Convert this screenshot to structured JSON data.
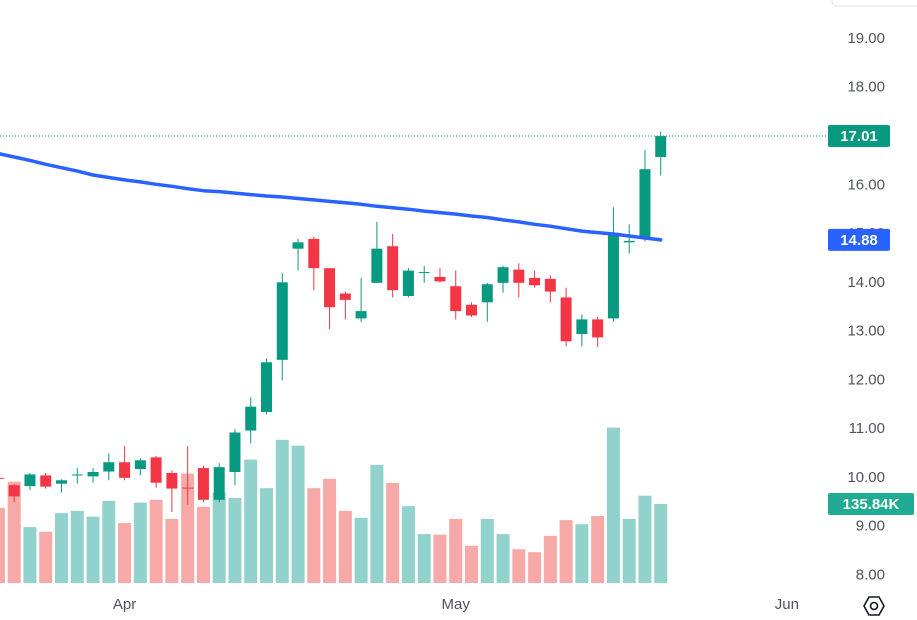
{
  "chart_data": {
    "type": "candlestick",
    "categories": [
      null,
      null,
      null,
      null,
      null,
      null,
      null,
      null,
      null,
      null,
      null,
      null,
      null,
      null,
      null,
      null,
      null,
      null,
      null,
      null,
      null,
      null,
      null,
      null,
      null,
      null,
      null,
      null,
      null,
      null,
      null,
      null,
      null,
      null,
      null,
      null,
      null,
      null,
      null,
      null,
      null,
      null,
      null
    ],
    "open": [
      10.0,
      9.85,
      9.83,
      10.05,
      9.88,
      10.05,
      10.03,
      10.13,
      10.32,
      10.18,
      10.42,
      10.1,
      9.8,
      10.2,
      9.55,
      10.12,
      10.97,
      11.35,
      12.42,
      14.7,
      14.9,
      14.3,
      13.78,
      13.27,
      14.0,
      14.75,
      13.73,
      14.2,
      14.12,
      13.93,
      13.55,
      13.6,
      14.0,
      14.27,
      14.1,
      14.08,
      13.7,
      12.95,
      13.25,
      13.27,
      14.83,
      14.93,
      16.58
    ],
    "high": [
      10.05,
      9.87,
      10.1,
      10.1,
      9.97,
      10.2,
      10.2,
      10.5,
      10.65,
      10.4,
      10.45,
      10.15,
      10.65,
      10.25,
      10.3,
      11.0,
      11.65,
      12.45,
      14.2,
      14.9,
      14.95,
      14.3,
      13.82,
      14.1,
      15.25,
      15.0,
      14.3,
      14.35,
      14.3,
      14.25,
      13.6,
      14.0,
      14.35,
      14.4,
      14.25,
      14.15,
      13.9,
      13.35,
      13.3,
      15.55,
      15.2,
      16.72,
      17.1
    ],
    "low": [
      9.9,
      9.5,
      9.75,
      9.78,
      9.7,
      9.88,
      9.9,
      9.95,
      9.95,
      10.05,
      9.8,
      9.3,
      9.45,
      9.5,
      9.5,
      9.85,
      10.7,
      11.3,
      12.0,
      14.25,
      13.85,
      13.05,
      13.25,
      13.2,
      14.0,
      13.7,
      13.7,
      14.0,
      14.0,
      13.25,
      13.3,
      13.2,
      13.8,
      13.7,
      13.9,
      13.6,
      12.7,
      12.7,
      12.68,
      13.2,
      14.6,
      14.85,
      16.2
    ],
    "close": [
      9.98,
      9.62,
      10.07,
      9.82,
      9.95,
      10.07,
      10.12,
      10.32,
      10.0,
      10.36,
      9.9,
      9.78,
      9.78,
      9.55,
      10.22,
      10.93,
      11.46,
      12.37,
      14.01,
      14.83,
      14.3,
      13.5,
      13.65,
      13.42,
      14.7,
      13.85,
      14.25,
      14.22,
      14.03,
      13.42,
      13.33,
      13.97,
      14.32,
      14.0,
      13.95,
      13.82,
      12.8,
      13.25,
      12.88,
      15.0,
      14.86,
      16.33,
      17.01
    ],
    "volume": [
      129000,
      174000,
      96000,
      88000,
      120000,
      124000,
      114000,
      141000,
      103000,
      138000,
      143000,
      110000,
      188000,
      131000,
      155000,
      146000,
      212000,
      163000,
      246000,
      236000,
      163000,
      179000,
      124000,
      112000,
      203000,
      172000,
      132000,
      84000,
      83000,
      110000,
      64000,
      110000,
      84000,
      58000,
      53000,
      81000,
      108000,
      101000,
      115000,
      267000,
      110000,
      150000,
      135840
    ],
    "ma": [
      16.65,
      16.58,
      16.51,
      16.43,
      16.36,
      16.29,
      16.21,
      16.16,
      16.11,
      16.07,
      16.02,
      15.98,
      15.93,
      15.89,
      15.87,
      15.84,
      15.81,
      15.78,
      15.76,
      15.73,
      15.7,
      15.67,
      15.64,
      15.61,
      15.57,
      15.54,
      15.51,
      15.47,
      15.44,
      15.41,
      15.37,
      15.34,
      15.29,
      15.25,
      15.2,
      15.16,
      15.11,
      15.06,
      15.03,
      15.0,
      14.96,
      14.92,
      14.88
    ],
    "colors": {
      "up": "#089981",
      "down": "#f23645",
      "up_volume": "#92d2cc",
      "down_volume": "#f7a9a7",
      "ma": "#2962ff"
    },
    "xlim": [
      0.1,
      52.1
    ],
    "xticks": [
      {
        "value": 8,
        "label": "Apr"
      },
      {
        "value": 29,
        "label": "May"
      },
      {
        "value": 50,
        "label": "Jun"
      }
    ],
    "ylim": [
      7.7,
      19.8
    ],
    "yticks": [
      {
        "value": 8,
        "label": "8.00"
      },
      {
        "value": 9,
        "label": "9.00"
      },
      {
        "value": 10,
        "label": "10.00"
      },
      {
        "value": 11,
        "label": "11.00"
      },
      {
        "value": 12,
        "label": "12.00"
      },
      {
        "value": 13,
        "label": "13.00"
      },
      {
        "value": 14,
        "label": "14.00"
      },
      {
        "value": 15,
        "label": "15.00"
      },
      {
        "value": 16,
        "label": "16.00"
      },
      {
        "value": 17,
        "label": "17.00"
      },
      {
        "value": 18,
        "label": "18.00"
      },
      {
        "value": 19,
        "label": "19.00"
      }
    ],
    "volume_lim": [
      0,
      500000
    ],
    "price_line": 17.01,
    "badges": [
      {
        "value": 17.01,
        "label": "17.01",
        "color": "#089981",
        "axis": "y"
      },
      {
        "value": 14.88,
        "label": "14.88",
        "color": "#2962ff",
        "axis": "y"
      },
      {
        "value": 135840,
        "label": "135.84K",
        "color": "#22ab94",
        "axis": "volume"
      }
    ]
  }
}
